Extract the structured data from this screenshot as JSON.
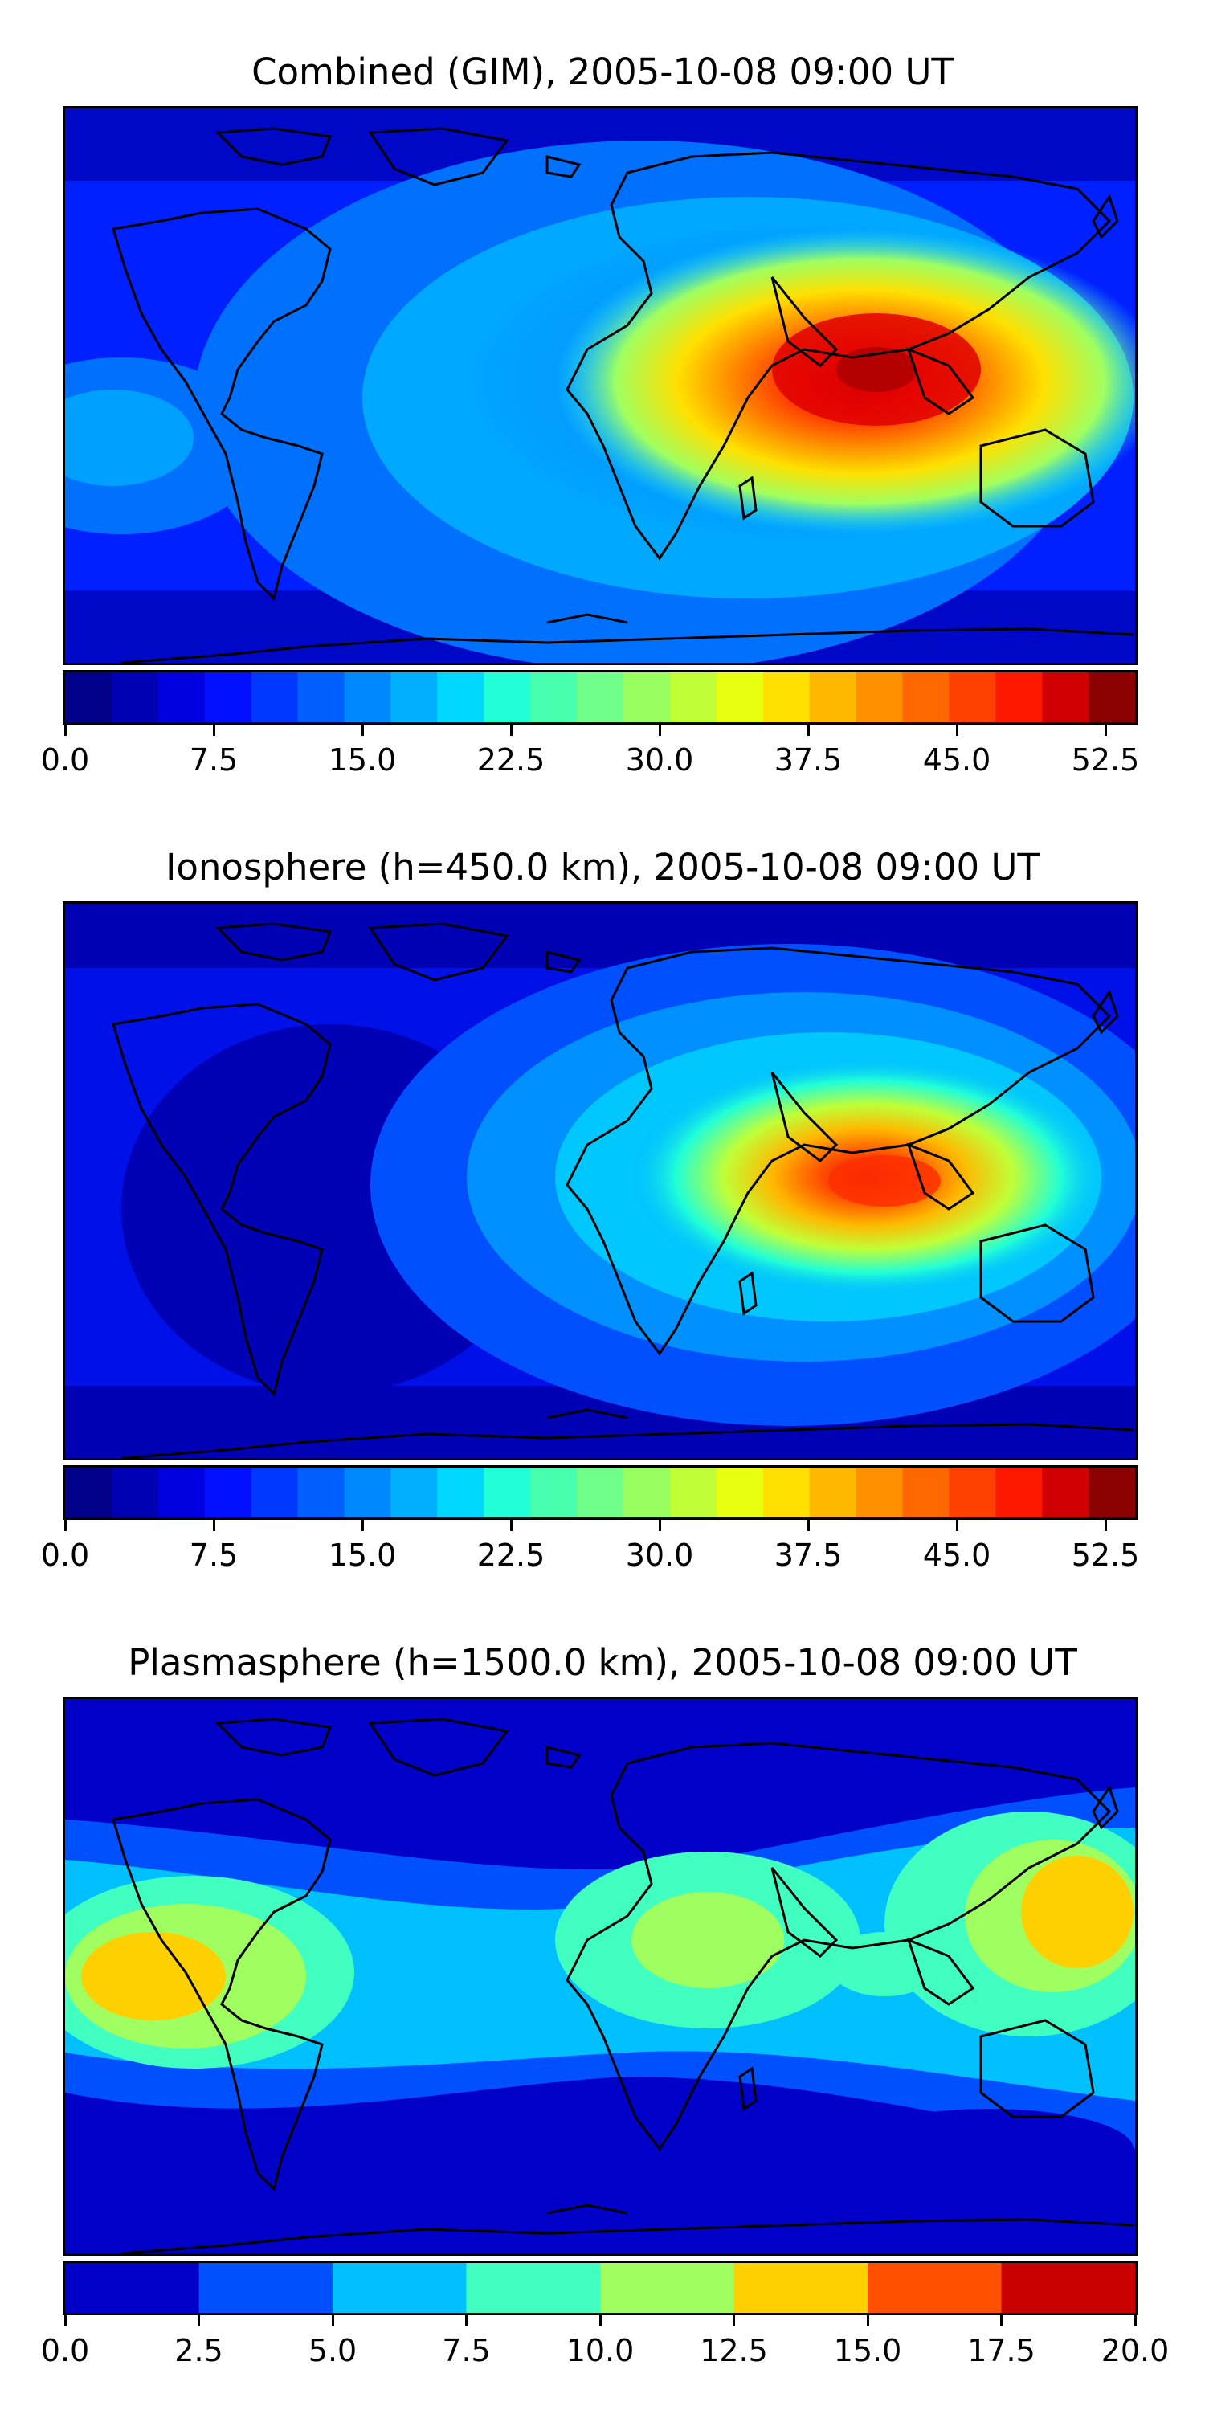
{
  "panels": [
    {
      "title": "Combined (GIM), 2005-10-08 09:00 UT",
      "colorbar": {
        "min": 0.0,
        "max": 54.0,
        "levels": 22,
        "colors": [
          "#00008b",
          "#0000b4",
          "#0000e0",
          "#0010ff",
          "#0038ff",
          "#0060ff",
          "#0088ff",
          "#00b0ff",
          "#00d8ff",
          "#20ffd8",
          "#48ffb0",
          "#70ff88",
          "#98ff60",
          "#c0ff38",
          "#e8ff10",
          "#ffe000",
          "#ffb800",
          "#ff9000",
          "#ff6800",
          "#ff4000",
          "#ff1800",
          "#d00000",
          "#8b0000"
        ],
        "ticks": [
          "0.0",
          "7.5",
          "15.0",
          "22.5",
          "30.0",
          "37.5",
          "45.0",
          "52.5"
        ],
        "tick_values": [
          0,
          7.5,
          15,
          22.5,
          30,
          37.5,
          45,
          52.5
        ]
      }
    },
    {
      "title": "Ionosphere  (h=450.0 km), 2005-10-08 09:00 UT",
      "colorbar": {
        "min": 0.0,
        "max": 54.0,
        "levels": 22,
        "colors": [
          "#00008b",
          "#0000b4",
          "#0000e0",
          "#0010ff",
          "#0038ff",
          "#0060ff",
          "#0088ff",
          "#00b0ff",
          "#00d8ff",
          "#20ffd8",
          "#48ffb0",
          "#70ff88",
          "#98ff60",
          "#c0ff38",
          "#e8ff10",
          "#ffe000",
          "#ffb800",
          "#ff9000",
          "#ff6800",
          "#ff4000",
          "#ff1800",
          "#d00000",
          "#8b0000"
        ],
        "ticks": [
          "0.0",
          "7.5",
          "15.0",
          "22.5",
          "30.0",
          "37.5",
          "45.0",
          "52.5"
        ],
        "tick_values": [
          0,
          7.5,
          15,
          22.5,
          30,
          37.5,
          45,
          52.5
        ]
      }
    },
    {
      "title": "Plasmasphere (h=1500.0 km), 2005-10-08 09:00 UT",
      "colorbar": {
        "min": 0.0,
        "max": 20.0,
        "levels": 8,
        "colors": [
          "#0000c8",
          "#0050ff",
          "#00c0ff",
          "#40ffc0",
          "#a0ff60",
          "#ffd000",
          "#ff5000",
          "#c80000"
        ],
        "ticks": [
          "0.0",
          "2.5",
          "5.0",
          "7.5",
          "10.0",
          "12.5",
          "15.0",
          "17.5",
          "20.0"
        ],
        "tick_values": [
          0,
          2.5,
          5,
          7.5,
          10,
          12.5,
          15,
          17.5,
          20
        ]
      }
    }
  ]
}
